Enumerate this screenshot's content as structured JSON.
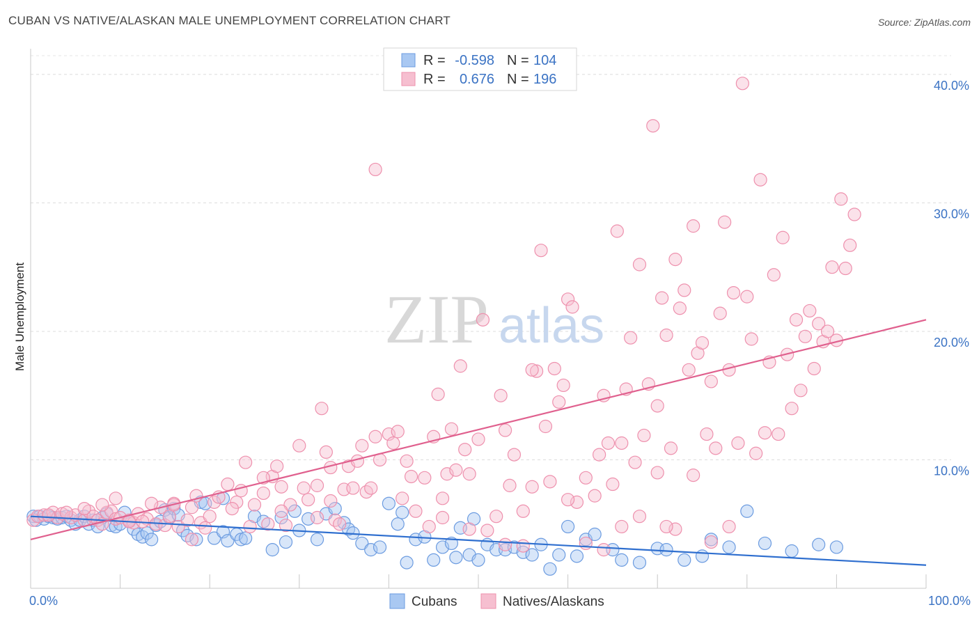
{
  "chart_data": {
    "type": "scatter",
    "title": "CUBAN VS NATIVE/ALASKAN MALE UNEMPLOYMENT CORRELATION CHART",
    "source": "Source: ZipAtlas.com",
    "xlabel": "",
    "ylabel": "Male Unemployment",
    "xlim": [
      0,
      100
    ],
    "ylim": [
      0,
      42
    ],
    "x_tick_labels": [
      "0.0%",
      "100.0%"
    ],
    "y_ticks": [
      10,
      20,
      30,
      40
    ],
    "y_tick_labels": [
      "10.0%",
      "20.0%",
      "30.0%",
      "40.0%"
    ],
    "grid": true,
    "watermark": {
      "zip": "ZIP",
      "atlas": "atlas"
    },
    "legend": {
      "placement": "top-center",
      "rows": [
        {
          "r_label": "R =",
          "r_value": "-0.598",
          "n_label": "N =",
          "n_value": "104"
        },
        {
          "r_label": "R =",
          "r_value": "0.676",
          "n_label": "N =",
          "n_value": "196"
        }
      ]
    },
    "series": [
      {
        "name": "Cubans",
        "color": "#6b9be0",
        "fill": "#a9c8f2",
        "trend": {
          "x": [
            0,
            100
          ],
          "y": [
            5.6,
            1.8
          ],
          "color": "#2f6fcf"
        },
        "points": [
          [
            0.3,
            5.6
          ],
          [
            0.6,
            5.3
          ],
          [
            1.0,
            5.6
          ],
          [
            1.5,
            5.4
          ],
          [
            2.0,
            5.6
          ],
          [
            2.5,
            5.5
          ],
          [
            3.0,
            5.4
          ],
          [
            3.5,
            5.5
          ],
          [
            4.0,
            5.6
          ],
          [
            4.5,
            5.3
          ],
          [
            5.0,
            5.0
          ],
          [
            5.5,
            5.3
          ],
          [
            6.0,
            5.6
          ],
          [
            6.5,
            5.0
          ],
          [
            7.0,
            5.3
          ],
          [
            7.5,
            4.8
          ],
          [
            8.0,
            5.5
          ],
          [
            8.5,
            5.8
          ],
          [
            9.0,
            4.9
          ],
          [
            9.5,
            4.8
          ],
          [
            10.0,
            5.0
          ],
          [
            10.5,
            5.9
          ],
          [
            11.0,
            5.2
          ],
          [
            11.5,
            4.6
          ],
          [
            12.0,
            4.2
          ],
          [
            12.5,
            4.0
          ],
          [
            13.0,
            4.3
          ],
          [
            13.5,
            3.8
          ],
          [
            14.0,
            4.9
          ],
          [
            14.5,
            5.2
          ],
          [
            15.0,
            6.1
          ],
          [
            15.5,
            5.5
          ],
          [
            16.0,
            6.2
          ],
          [
            16.5,
            5.7
          ],
          [
            17.0,
            4.5
          ],
          [
            17.5,
            4.1
          ],
          [
            18.5,
            3.8
          ],
          [
            19.0,
            6.7
          ],
          [
            19.5,
            6.6
          ],
          [
            20.5,
            3.9
          ],
          [
            21.5,
            4.4
          ],
          [
            21.5,
            7.0
          ],
          [
            22.0,
            3.7
          ],
          [
            23.0,
            4.2
          ],
          [
            23.5,
            3.8
          ],
          [
            24.0,
            3.9
          ],
          [
            25.0,
            5.6
          ],
          [
            26.0,
            5.2
          ],
          [
            27.0,
            3.0
          ],
          [
            28.0,
            5.5
          ],
          [
            28.5,
            3.6
          ],
          [
            29.5,
            6.0
          ],
          [
            30.0,
            4.5
          ],
          [
            31.0,
            5.4
          ],
          [
            32.0,
            3.8
          ],
          [
            33.0,
            5.8
          ],
          [
            34.0,
            6.2
          ],
          [
            35.0,
            5.1
          ],
          [
            35.5,
            4.6
          ],
          [
            36.0,
            4.3
          ],
          [
            37.0,
            3.5
          ],
          [
            38.0,
            3.0
          ],
          [
            39.0,
            3.2
          ],
          [
            40.0,
            6.6
          ],
          [
            41.0,
            5.0
          ],
          [
            41.5,
            5.9
          ],
          [
            42.0,
            2.0
          ],
          [
            43.0,
            3.8
          ],
          [
            44.0,
            4.0
          ],
          [
            45.0,
            2.2
          ],
          [
            46.0,
            3.2
          ],
          [
            47.0,
            3.5
          ],
          [
            47.5,
            2.4
          ],
          [
            48.0,
            4.7
          ],
          [
            49.0,
            2.6
          ],
          [
            49.5,
            5.4
          ],
          [
            50.0,
            2.2
          ],
          [
            51.0,
            3.4
          ],
          [
            52.0,
            3.0
          ],
          [
            53.0,
            3.0
          ],
          [
            54.0,
            3.2
          ],
          [
            55.0,
            2.8
          ],
          [
            56.0,
            2.6
          ],
          [
            57.0,
            3.4
          ],
          [
            58.0,
            1.5
          ],
          [
            59.0,
            2.6
          ],
          [
            60.0,
            4.8
          ],
          [
            61.0,
            2.5
          ],
          [
            62.0,
            3.8
          ],
          [
            63.0,
            4.2
          ],
          [
            65.0,
            3.0
          ],
          [
            66.0,
            2.2
          ],
          [
            68.0,
            2.0
          ],
          [
            70.0,
            3.1
          ],
          [
            71.0,
            3.0
          ],
          [
            73.0,
            2.2
          ],
          [
            75.0,
            2.5
          ],
          [
            76.0,
            3.8
          ],
          [
            78.0,
            3.2
          ],
          [
            80.0,
            6.0
          ],
          [
            82.0,
            3.5
          ],
          [
            85.0,
            2.9
          ],
          [
            88.0,
            3.4
          ],
          [
            90.0,
            3.2
          ]
        ]
      },
      {
        "name": "Natives/Alaskans",
        "color": "#ee90ad",
        "fill": "#f6bfd0",
        "trend": {
          "x": [
            0,
            100
          ],
          "y": [
            3.8,
            20.9
          ],
          "color": "#e0608e"
        },
        "points": [
          [
            0.3,
            5.3
          ],
          [
            0.8,
            5.6
          ],
          [
            1.5,
            5.7
          ],
          [
            2.5,
            5.9
          ],
          [
            3.0,
            5.5
          ],
          [
            3.5,
            5.8
          ],
          [
            4.5,
            5.5
          ],
          [
            5.0,
            5.7
          ],
          [
            6.0,
            5.3
          ],
          [
            6.5,
            6.0
          ],
          [
            7.0,
            5.6
          ],
          [
            7.5,
            5.3
          ],
          [
            8.0,
            5.0
          ],
          [
            8.5,
            5.9
          ],
          [
            9.0,
            6.0
          ],
          [
            9.5,
            5.4
          ],
          [
            10.0,
            5.5
          ],
          [
            11.0,
            5.3
          ],
          [
            11.5,
            5.1
          ],
          [
            12.0,
            5.8
          ],
          [
            13.0,
            5.4
          ],
          [
            14.0,
            5.0
          ],
          [
            14.5,
            6.3
          ],
          [
            15.0,
            4.9
          ],
          [
            15.5,
            5.6
          ],
          [
            16.0,
            6.6
          ],
          [
            16.5,
            4.8
          ],
          [
            17.5,
            5.3
          ],
          [
            18.0,
            6.3
          ],
          [
            18.5,
            7.2
          ],
          [
            19.0,
            5.1
          ],
          [
            20.0,
            5.6
          ],
          [
            20.5,
            6.7
          ],
          [
            21.0,
            7.1
          ],
          [
            22.0,
            8.1
          ],
          [
            23.0,
            6.7
          ],
          [
            23.5,
            7.6
          ],
          [
            24.0,
            9.8
          ],
          [
            25.0,
            6.5
          ],
          [
            26.0,
            7.4
          ],
          [
            26.5,
            5.0
          ],
          [
            27.0,
            8.7
          ],
          [
            27.5,
            9.5
          ],
          [
            28.0,
            7.9
          ],
          [
            28.5,
            4.9
          ],
          [
            29.0,
            6.5
          ],
          [
            30.0,
            11.1
          ],
          [
            30.5,
            7.8
          ],
          [
            31.0,
            6.9
          ],
          [
            32.0,
            8.0
          ],
          [
            32.5,
            14.0
          ],
          [
            33.0,
            10.6
          ],
          [
            33.5,
            9.4
          ],
          [
            34.0,
            5.3
          ],
          [
            34.5,
            5.0
          ],
          [
            35.0,
            7.7
          ],
          [
            35.5,
            9.5
          ],
          [
            36.0,
            7.8
          ],
          [
            36.5,
            9.9
          ],
          [
            37.0,
            11.1
          ],
          [
            37.5,
            7.5
          ],
          [
            38.0,
            7.8
          ],
          [
            38.5,
            11.8
          ],
          [
            39.0,
            10.0
          ],
          [
            40.0,
            12.0
          ],
          [
            40.5,
            11.3
          ],
          [
            41.0,
            12.2
          ],
          [
            41.5,
            7.0
          ],
          [
            42.0,
            9.9
          ],
          [
            42.5,
            8.7
          ],
          [
            43.0,
            6.0
          ],
          [
            44.0,
            8.6
          ],
          [
            45.0,
            11.8
          ],
          [
            45.5,
            15.1
          ],
          [
            46.0,
            7.0
          ],
          [
            46.5,
            8.9
          ],
          [
            47.0,
            12.4
          ],
          [
            47.5,
            9.2
          ],
          [
            48.0,
            17.3
          ],
          [
            48.5,
            10.8
          ],
          [
            49.0,
            8.9
          ],
          [
            50.0,
            11.6
          ],
          [
            50.5,
            20.9
          ],
          [
            51.0,
            4.5
          ],
          [
            52.0,
            5.6
          ],
          [
            52.5,
            15.0
          ],
          [
            53.0,
            12.3
          ],
          [
            53.5,
            8.0
          ],
          [
            54.0,
            10.4
          ],
          [
            55.0,
            6.0
          ],
          [
            56.0,
            7.9
          ],
          [
            56.5,
            16.9
          ],
          [
            57.0,
            26.3
          ],
          [
            57.5,
            12.6
          ],
          [
            58.0,
            8.3
          ],
          [
            58.5,
            17.1
          ],
          [
            59.0,
            14.5
          ],
          [
            59.5,
            15.8
          ],
          [
            60.0,
            22.5
          ],
          [
            60.5,
            21.9
          ],
          [
            61.0,
            6.7
          ],
          [
            62.0,
            8.6
          ],
          [
            63.0,
            7.2
          ],
          [
            63.5,
            10.4
          ],
          [
            64.0,
            15.0
          ],
          [
            64.5,
            11.3
          ],
          [
            65.0,
            8.1
          ],
          [
            65.5,
            27.8
          ],
          [
            66.0,
            11.3
          ],
          [
            66.5,
            15.5
          ],
          [
            67.0,
            19.5
          ],
          [
            67.5,
            9.8
          ],
          [
            68.0,
            25.2
          ],
          [
            68.5,
            11.9
          ],
          [
            69.0,
            15.9
          ],
          [
            69.5,
            36.0
          ],
          [
            70.0,
            14.2
          ],
          [
            70.5,
            22.6
          ],
          [
            71.0,
            19.7
          ],
          [
            71.5,
            10.9
          ],
          [
            72.0,
            25.6
          ],
          [
            72.5,
            21.8
          ],
          [
            73.0,
            23.2
          ],
          [
            73.5,
            17.0
          ],
          [
            74.0,
            28.2
          ],
          [
            74.5,
            18.3
          ],
          [
            75.0,
            19.1
          ],
          [
            75.5,
            12.0
          ],
          [
            76.0,
            16.1
          ],
          [
            76.5,
            10.9
          ],
          [
            77.0,
            21.4
          ],
          [
            77.5,
            28.5
          ],
          [
            78.0,
            17.0
          ],
          [
            78.5,
            23.0
          ],
          [
            79.0,
            11.3
          ],
          [
            79.5,
            39.3
          ],
          [
            80.0,
            22.7
          ],
          [
            80.5,
            19.4
          ],
          [
            81.0,
            10.5
          ],
          [
            81.5,
            31.8
          ],
          [
            82.0,
            12.1
          ],
          [
            82.5,
            17.6
          ],
          [
            83.0,
            24.4
          ],
          [
            83.5,
            12.0
          ],
          [
            84.0,
            27.3
          ],
          [
            84.5,
            18.2
          ],
          [
            85.0,
            14.0
          ],
          [
            85.5,
            20.9
          ],
          [
            86.0,
            15.4
          ],
          [
            86.5,
            19.6
          ],
          [
            87.0,
            21.6
          ],
          [
            87.5,
            17.1
          ],
          [
            88.0,
            20.6
          ],
          [
            88.5,
            19.2
          ],
          [
            89.0,
            20.0
          ],
          [
            89.5,
            25.0
          ],
          [
            90.0,
            19.3
          ],
          [
            90.5,
            30.3
          ],
          [
            91.0,
            24.9
          ],
          [
            91.5,
            26.7
          ],
          [
            92.0,
            29.1
          ],
          [
            60.0,
            6.9
          ],
          [
            62.0,
            3.5
          ],
          [
            64.0,
            3.0
          ],
          [
            66.0,
            4.8
          ],
          [
            68.0,
            5.6
          ],
          [
            70.0,
            9.0
          ],
          [
            72.0,
            4.6
          ],
          [
            74.0,
            8.8
          ],
          [
            76.0,
            3.6
          ],
          [
            78.0,
            4.8
          ],
          [
            44.5,
            4.8
          ],
          [
            46.0,
            5.5
          ],
          [
            49.0,
            4.6
          ],
          [
            53.0,
            3.4
          ],
          [
            55.0,
            3.3
          ],
          [
            38.5,
            32.6
          ],
          [
            56.0,
            17.0
          ],
          [
            71.0,
            4.8
          ],
          [
            33.5,
            6.8
          ],
          [
            32.0,
            5.5
          ],
          [
            28.0,
            6.0
          ],
          [
            26.0,
            8.6
          ],
          [
            24.5,
            4.8
          ],
          [
            22.5,
            6.2
          ],
          [
            19.5,
            4.7
          ],
          [
            18.0,
            3.8
          ],
          [
            16.0,
            6.5
          ],
          [
            13.5,
            6.6
          ],
          [
            12.5,
            5.2
          ],
          [
            11.0,
            5.2
          ],
          [
            9.5,
            7.0
          ],
          [
            8.0,
            6.5
          ],
          [
            6.0,
            6.2
          ],
          [
            4.0,
            5.9
          ],
          [
            2.0,
            5.7
          ]
        ]
      }
    ]
  }
}
